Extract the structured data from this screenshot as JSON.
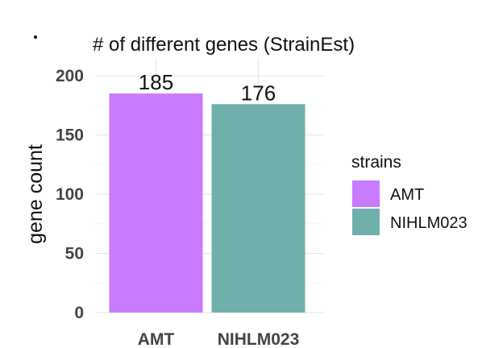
{
  "chart_data": {
    "type": "bar",
    "title": "# of different genes (StrainEst)",
    "xlabel": "",
    "ylabel": "gene count",
    "categories": [
      "AMT",
      "NIHLM023"
    ],
    "values": [
      185,
      176
    ],
    "data_labels": [
      "185",
      "176"
    ],
    "colors": [
      "#C77CFF",
      "#6FB0AC"
    ],
    "ylim": [
      0,
      200
    ],
    "yticks": [
      0,
      50,
      100,
      150,
      200
    ],
    "ytick_labels": [
      "0",
      "50",
      "100",
      "150",
      "200"
    ],
    "grid": true,
    "legend": {
      "title": "strains",
      "position": "right",
      "entries": [
        "AMT",
        "NIHLM023"
      ]
    }
  }
}
